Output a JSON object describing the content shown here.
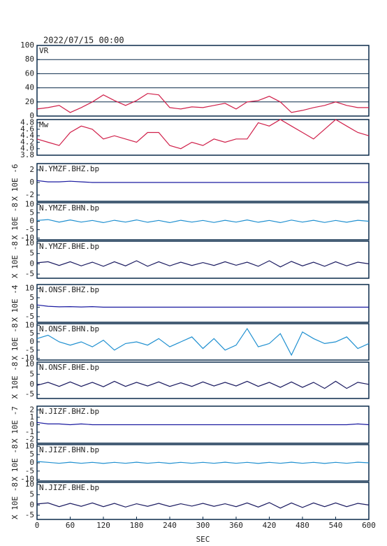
{
  "header": {
    "date": "2022/07/15  00:00"
  },
  "chart_data": [
    {
      "type": "line",
      "label": "VR",
      "ylim": [
        0,
        100
      ],
      "yticks": [
        0,
        20,
        40,
        60,
        80,
        100
      ],
      "grid": true,
      "xlim": [
        0,
        600
      ],
      "color": "#d0204a",
      "x": [
        0,
        20,
        40,
        60,
        80,
        100,
        120,
        140,
        160,
        180,
        200,
        220,
        240,
        260,
        280,
        300,
        320,
        340,
        360,
        380,
        400,
        420,
        440,
        460,
        480,
        500,
        520,
        540,
        560,
        580,
        600
      ],
      "values": [
        10,
        12,
        15,
        5,
        12,
        20,
        30,
        22,
        15,
        22,
        32,
        30,
        12,
        10,
        13,
        12,
        15,
        18,
        10,
        20,
        22,
        28,
        20,
        5,
        8,
        12,
        15,
        20,
        15,
        12,
        12
      ]
    },
    {
      "type": "line",
      "label": "Mw",
      "ylim": [
        3.8,
        4.9
      ],
      "yticks": [
        3.8,
        {
          "value": 4,
          "label": "4.0"
        },
        4.2,
        4.4,
        4.6,
        4.8
      ],
      "grid": false,
      "xlim": [
        0,
        600
      ],
      "color": "#d0204a",
      "x": [
        0,
        20,
        40,
        60,
        80,
        100,
        120,
        140,
        160,
        180,
        200,
        220,
        240,
        260,
        280,
        300,
        320,
        340,
        360,
        380,
        400,
        420,
        440,
        460,
        480,
        500,
        520,
        540,
        560,
        580,
        600
      ],
      "values": [
        4.3,
        4.2,
        4.1,
        4.5,
        4.7,
        4.6,
        4.3,
        4.4,
        4.3,
        4.2,
        4.5,
        4.5,
        4.1,
        4.0,
        4.2,
        4.1,
        4.3,
        4.2,
        4.3,
        4.3,
        4.8,
        4.7,
        4.9,
        4.7,
        4.5,
        4.3,
        4.6,
        4.9,
        4.7,
        4.5,
        4.4
      ]
    },
    {
      "type": "line",
      "label": "N.YMZF.BHZ.bp",
      "y_label": "X 10E -6",
      "ylim": [
        -3,
        3
      ],
      "yticks": [
        -2,
        0,
        2
      ],
      "xlim": [
        0,
        600
      ],
      "color": "#1a1aa0",
      "x": [
        0,
        20,
        40,
        60,
        80,
        100,
        120,
        140,
        160,
        180,
        200,
        220,
        240,
        260,
        280,
        300,
        320,
        340,
        360,
        380,
        400,
        420,
        440,
        460,
        480,
        500,
        520,
        540,
        560,
        580,
        600
      ],
      "values": [
        0.3,
        0.1,
        0.1,
        0.2,
        0.1,
        0,
        0,
        0,
        0,
        0,
        0,
        0,
        0,
        0,
        0,
        0,
        0,
        0,
        0,
        0,
        0,
        0,
        0,
        0,
        0,
        0,
        0,
        0,
        0,
        0,
        0
      ]
    },
    {
      "type": "line",
      "label": "N.YMZF.BHN.bp",
      "y_label": "X 10E -8",
      "ylim": [
        -11,
        11
      ],
      "yticks": [
        -10,
        -5,
        0,
        5,
        10
      ],
      "xlim": [
        0,
        600
      ],
      "color": "#1e8fd0",
      "x": [
        0,
        20,
        40,
        60,
        80,
        100,
        120,
        140,
        160,
        180,
        200,
        220,
        240,
        260,
        280,
        300,
        320,
        340,
        360,
        380,
        400,
        420,
        440,
        460,
        480,
        500,
        520,
        540,
        560,
        580,
        600
      ],
      "values": [
        0.5,
        1,
        -0.5,
        0.8,
        -0.5,
        0.5,
        -0.8,
        0.6,
        -0.5,
        0.8,
        -0.6,
        0.5,
        -0.8,
        0.6,
        -0.5,
        0.5,
        -0.7,
        0.6,
        -0.5,
        0.8,
        -0.6,
        0.5,
        -0.8,
        0.7,
        -0.5,
        0.6,
        -0.7,
        0.5,
        -0.6,
        0.6,
        0
      ]
    },
    {
      "type": "line",
      "label": "N.YMZF.BHE.bp",
      "y_label": "X 10E -8",
      "ylim": [
        -7,
        11
      ],
      "yticks": [
        -5,
        0,
        5,
        10
      ],
      "xlim": [
        0,
        600
      ],
      "color": "#1a1a60",
      "x": [
        0,
        20,
        40,
        60,
        80,
        100,
        120,
        140,
        160,
        180,
        200,
        220,
        240,
        260,
        280,
        300,
        320,
        340,
        360,
        380,
        400,
        420,
        440,
        460,
        480,
        500,
        520,
        540,
        560,
        580,
        600
      ],
      "values": [
        0.5,
        1,
        -0.8,
        1,
        -1,
        0.8,
        -1.2,
        1,
        -1,
        1.5,
        -1.2,
        1,
        -1,
        0.8,
        -0.8,
        0.6,
        -0.8,
        1,
        -0.7,
        0.8,
        -1.2,
        1.5,
        -1.5,
        1.2,
        -1,
        0.8,
        -1.2,
        1,
        -1,
        0.8,
        0
      ]
    },
    {
      "type": "line",
      "label": "N.ONSF.BHZ.bp",
      "y_label": "X 10E -4",
      "ylim": [
        -8,
        12
      ],
      "yticks": [
        -5,
        0,
        5,
        10
      ],
      "xlim": [
        0,
        600
      ],
      "color": "#1a1aa0",
      "x": [
        0,
        20,
        40,
        60,
        80,
        100,
        120,
        140,
        160,
        180,
        200,
        220,
        240,
        260,
        280,
        300,
        320,
        340,
        360,
        380,
        400,
        420,
        440,
        460,
        480,
        500,
        520,
        540,
        560,
        580,
        600
      ],
      "values": [
        1.2,
        0.5,
        0.2,
        0.3,
        0.1,
        0.3,
        0,
        0,
        0,
        0,
        0,
        0,
        0,
        0,
        0,
        0,
        0,
        0,
        0,
        0,
        0,
        0,
        0,
        0,
        0,
        0,
        0,
        0,
        0,
        0,
        0
      ]
    },
    {
      "type": "line",
      "label": "N.ONSF.BHN.bp",
      "y_label": "X 10E -8",
      "ylim": [
        -11,
        11
      ],
      "yticks": [
        -10,
        -5,
        0,
        5,
        10
      ],
      "xlim": [
        0,
        600
      ],
      "color": "#1e8fd0",
      "x": [
        0,
        20,
        40,
        60,
        80,
        100,
        120,
        140,
        160,
        180,
        200,
        220,
        240,
        260,
        280,
        300,
        320,
        340,
        360,
        380,
        400,
        420,
        440,
        460,
        480,
        500,
        520,
        540,
        560,
        580,
        600
      ],
      "values": [
        2,
        4,
        0,
        -2,
        0,
        -3,
        1,
        -5,
        -1,
        0,
        -2,
        2,
        -3,
        0,
        3,
        -4,
        2,
        -5,
        -2,
        8,
        -3,
        -1,
        5,
        -8,
        6,
        2,
        -1,
        0,
        3,
        -4,
        -1
      ]
    },
    {
      "type": "line",
      "label": "N.ONSF.BHE.bp",
      "y_label": "X 10E -8",
      "ylim": [
        -7,
        11
      ],
      "yticks": [
        -5,
        0,
        5,
        10
      ],
      "xlim": [
        0,
        600
      ],
      "color": "#1a1a60",
      "x": [
        0,
        20,
        40,
        60,
        80,
        100,
        120,
        140,
        160,
        180,
        200,
        220,
        240,
        260,
        280,
        300,
        320,
        340,
        360,
        380,
        400,
        420,
        440,
        460,
        480,
        500,
        520,
        540,
        560,
        580,
        600
      ],
      "values": [
        -0.5,
        1,
        -1,
        1.2,
        -1,
        1,
        -1.2,
        1.5,
        -1,
        1,
        -0.8,
        1.2,
        -1,
        0.8,
        -1,
        1.2,
        -0.8,
        1,
        -0.8,
        1.5,
        -1,
        1,
        -1.5,
        1.2,
        -1.5,
        1,
        -2,
        1.5,
        -2,
        1,
        0
      ]
    },
    {
      "type": "line",
      "label": "N.JIZF.BHZ.bp",
      "y_label": "X 10E -7",
      "ylim": [
        -2.5,
        2.5
      ],
      "yticks": [
        -2,
        -1,
        0,
        1,
        2
      ],
      "xlim": [
        0,
        600
      ],
      "color": "#1a1aa0",
      "x": [
        0,
        20,
        40,
        60,
        80,
        100,
        120,
        140,
        160,
        180,
        200,
        220,
        240,
        260,
        280,
        300,
        320,
        340,
        360,
        380,
        400,
        420,
        440,
        460,
        480,
        500,
        520,
        540,
        560,
        580,
        600
      ],
      "values": [
        0.3,
        0.1,
        0.1,
        0,
        0.1,
        0,
        0,
        0,
        0,
        0,
        0,
        0,
        0,
        0,
        0,
        0,
        0,
        0,
        0,
        0,
        0,
        0,
        0,
        0,
        0,
        0,
        0,
        0,
        0,
        0.1,
        0
      ]
    },
    {
      "type": "line",
      "label": "N.JIZF.BHN.bp",
      "y_label": "X 10E -8",
      "ylim": [
        -11,
        11
      ],
      "yticks": [
        -10,
        -5,
        0,
        5,
        10
      ],
      "xlim": [
        0,
        600
      ],
      "color": "#1e8fd0",
      "x": [
        0,
        20,
        40,
        60,
        80,
        100,
        120,
        140,
        160,
        180,
        200,
        220,
        240,
        260,
        280,
        300,
        320,
        340,
        360,
        380,
        400,
        420,
        440,
        460,
        480,
        500,
        520,
        540,
        560,
        580,
        600
      ],
      "values": [
        0.8,
        0.3,
        -0.3,
        0.4,
        -0.3,
        0.3,
        -0.4,
        0.3,
        -0.3,
        0.4,
        -0.3,
        0.3,
        -0.4,
        0.3,
        -0.3,
        0.3,
        -0.3,
        0.4,
        -0.3,
        0.3,
        -0.4,
        0.3,
        -0.3,
        0.4,
        -0.3,
        0.3,
        -0.4,
        0.3,
        -0.3,
        0.4,
        0
      ]
    },
    {
      "type": "line",
      "label": "N.JIZF.BHE.bp",
      "y_label": "X 10E -8",
      "ylim": [
        -7,
        11
      ],
      "yticks": [
        -5,
        0,
        5,
        10
      ],
      "xlim": [
        0,
        600
      ],
      "color": "#1a1a60",
      "x": [
        0,
        20,
        40,
        60,
        80,
        100,
        120,
        140,
        160,
        180,
        200,
        220,
        240,
        260,
        280,
        300,
        320,
        340,
        360,
        380,
        400,
        420,
        440,
        460,
        480,
        500,
        520,
        540,
        560,
        580,
        600
      ],
      "values": [
        0.5,
        1,
        -0.8,
        0.8,
        -0.6,
        1,
        -0.8,
        0.8,
        -1,
        0.6,
        -0.6,
        0.8,
        -0.7,
        0.6,
        -0.5,
        0.8,
        -0.6,
        0.6,
        -0.8,
        1,
        -1,
        1.2,
        -1.5,
        1,
        -1.2,
        1,
        -0.8,
        1,
        -0.8,
        0.8,
        0
      ],
      "xticks": [
        0,
        60,
        120,
        180,
        240,
        300,
        360,
        420,
        480,
        540,
        600
      ],
      "x_label": "SEC"
    }
  ]
}
